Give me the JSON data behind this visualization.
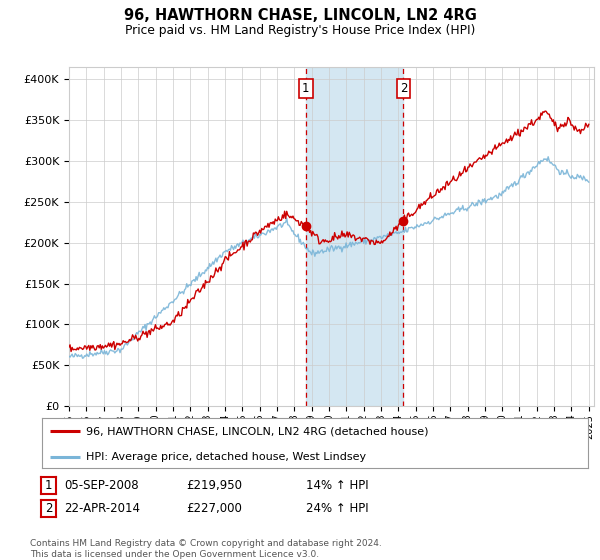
{
  "title": "96, HAWTHORN CHASE, LINCOLN, LN2 4RG",
  "subtitle": "Price paid vs. HM Land Registry's House Price Index (HPI)",
  "x_start_year": 1995,
  "x_end_year": 2025,
  "y_ticks": [
    0,
    50000,
    100000,
    150000,
    200000,
    250000,
    300000,
    350000,
    400000
  ],
  "y_labels": [
    "£0",
    "£50K",
    "£100K",
    "£150K",
    "£200K",
    "£250K",
    "£300K",
    "£350K",
    "£400K"
  ],
  "sale1_date": "05-SEP-2008",
  "sale1_price": 219950,
  "sale1_label": "1",
  "sale1_year": 2008.67,
  "sale2_date": "22-APR-2014",
  "sale2_price": 227000,
  "sale2_label": "2",
  "sale2_year": 2014.3,
  "legend_line1": "96, HAWTHORN CHASE, LINCOLN, LN2 4RG (detached house)",
  "legend_line2": "HPI: Average price, detached house, West Lindsey",
  "table_row1": [
    "1",
    "05-SEP-2008",
    "£219,950",
    "14% ↑ HPI"
  ],
  "table_row2": [
    "2",
    "22-APR-2014",
    "£227,000",
    "24% ↑ HPI"
  ],
  "footer": "Contains HM Land Registry data © Crown copyright and database right 2024.\nThis data is licensed under the Open Government Licence v3.0.",
  "hpi_color": "#7ab5d8",
  "price_color": "#cc0000",
  "shade_color": "#cde3f0",
  "marker_color": "#cc0000",
  "background_color": "#ffffff",
  "grid_color": "#cccccc"
}
